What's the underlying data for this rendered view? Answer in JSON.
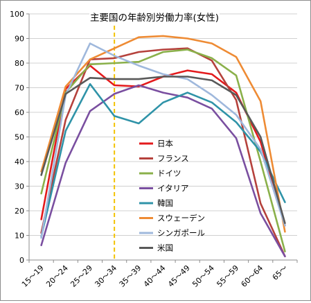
{
  "chart_data": {
    "type": "line",
    "title": "主要国の年齢別労働力率(女性)",
    "xlabel": "",
    "ylabel": "",
    "categories": [
      "15～19",
      "20～24",
      "25～29",
      "30～34",
      "35～39",
      "40～44",
      "45～49",
      "50～54",
      "55～59",
      "60～64",
      "65～"
    ],
    "ylim": [
      0,
      100
    ],
    "yticks": [
      0,
      10,
      20,
      30,
      40,
      50,
      60,
      70,
      80,
      90,
      100
    ],
    "grid": "horizontal",
    "legend_position": "center",
    "reference_line": {
      "category": "30～34",
      "color": "#f2c200",
      "style": "dashed"
    },
    "series": [
      {
        "name": "日本",
        "color": "#e31a1c",
        "values": [
          16.5,
          69.5,
          79.0,
          71.0,
          70.5,
          74.5,
          77.0,
          75.5,
          68.0,
          48.0,
          14.0
        ]
      },
      {
        "name": "フランス",
        "color": "#b5413c",
        "values": [
          11.0,
          57.0,
          81.5,
          82.0,
          84.5,
          85.5,
          86.0,
          81.0,
          65.0,
          23.0,
          1.5
        ]
      },
      {
        "name": "ドイツ",
        "color": "#8ab04a",
        "values": [
          27.0,
          68.0,
          79.5,
          80.0,
          80.5,
          84.5,
          85.5,
          82.0,
          75.0,
          40.0,
          3.5
        ]
      },
      {
        "name": "イタリア",
        "color": "#7a4fa0",
        "values": [
          6.0,
          39.5,
          60.5,
          67.5,
          71.0,
          68.0,
          66.0,
          61.5,
          49.5,
          19.0,
          1.5
        ]
      },
      {
        "name": "韓国",
        "color": "#2f93a8",
        "values": [
          9.5,
          52.5,
          71.5,
          58.5,
          55.5,
          64.0,
          68.0,
          64.0,
          56.0,
          44.0,
          23.5
        ]
      },
      {
        "name": "スウェーデン",
        "color": "#ee8b34",
        "values": [
          36.0,
          70.5,
          81.5,
          86.0,
          90.5,
          91.0,
          90.0,
          88.0,
          82.5,
          64.5,
          11.5
        ]
      },
      {
        "name": "シンガポール",
        "color": "#9fb8dc",
        "values": [
          9.0,
          67.0,
          88.0,
          83.0,
          79.0,
          75.5,
          73.5,
          67.0,
          59.0,
          45.0,
          14.0
        ]
      },
      {
        "name": "米国",
        "color": "#595959",
        "values": [
          34.5,
          67.5,
          74.0,
          73.5,
          73.5,
          74.5,
          74.5,
          73.0,
          67.0,
          50.0,
          15.0
        ]
      }
    ]
  }
}
